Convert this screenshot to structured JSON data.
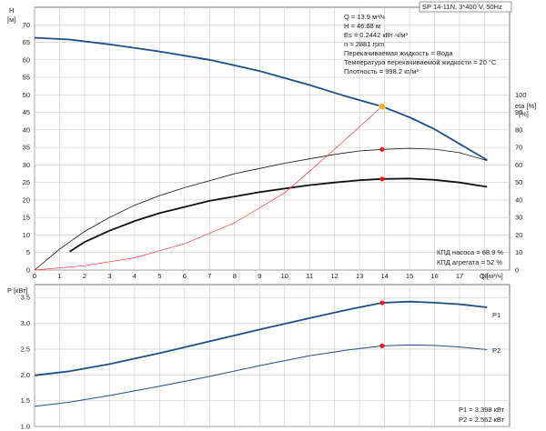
{
  "header": {
    "model": "SP 14-11N, 3*400 V, 50Hz"
  },
  "info": {
    "lines": [
      "Q = 13.9 м³/ч",
      "H = 46.68 м",
      "Es = 0.2442 кВт·ч/м³",
      "n = 2881 rpm",
      "Перекачиваемая жидкость = Вода",
      "Температура перекачиваемой жидкости = 20 °C",
      "Плотность = 998.2 кг/м³"
    ]
  },
  "efficiency_labels": {
    "pump": "КПД насоса = 68.9 %",
    "unit": "КПД агрегата = 52 %"
  },
  "power_labels": {
    "p1": "P1 = 3.398 кВт",
    "p2": "P2 = 2.562 кВт"
  },
  "colors": {
    "head": "#1f4e8c",
    "efficiency": "#111111",
    "npsh_red": "#ff3b3b",
    "power": "#1f4e8c",
    "point": "#e02020",
    "duty_point": "#ffb020"
  },
  "chart_data": [
    {
      "type": "line",
      "title": "",
      "xlabel": "Q [м³/ч]",
      "ylabel": "H [м]",
      "y2label": "eta [%]",
      "xlim": [
        0,
        19
      ],
      "ylim": [
        0,
        75
      ],
      "y2lim": [
        0,
        150
      ],
      "x_ticks": [
        0,
        1,
        2,
        3,
        4,
        5,
        6,
        7,
        8,
        9,
        10,
        11,
        12,
        13,
        14,
        15,
        16,
        17,
        18
      ],
      "y_ticks": [
        0,
        5,
        10,
        15,
        20,
        25,
        30,
        35,
        40,
        45,
        50,
        55,
        60,
        65,
        70
      ],
      "y2_ticks": [
        0,
        10,
        20,
        30,
        40,
        50,
        60,
        70,
        80,
        90,
        100
      ],
      "grid": true,
      "series": [
        {
          "name": "",
          "axis": "left",
          "style": "head",
          "x": [
            0,
            1.4,
            3,
            5,
            7,
            9,
            11,
            12.5,
            13.9,
            15,
            16,
            17,
            18.1
          ],
          "y": [
            66.3,
            65.8,
            64.4,
            62.4,
            60.0,
            56.8,
            52.8,
            49.5,
            46.68,
            43.6,
            40.2,
            36.0,
            31.4
          ]
        },
        {
          "name": "",
          "axis": "right",
          "style": "eta-pump",
          "x": [
            0,
            1,
            2,
            3,
            4,
            5,
            6,
            7,
            8,
            9,
            10,
            11,
            12,
            13,
            13.9,
            15,
            16,
            17,
            18.1
          ],
          "y": [
            0,
            12,
            22,
            30,
            37,
            42.5,
            47,
            51,
            55,
            58,
            61,
            63.5,
            66,
            68,
            68.9,
            69.5,
            69,
            67,
            62.5
          ]
        },
        {
          "name": "",
          "axis": "right",
          "style": "eta-unit",
          "x": [
            1.4,
            2,
            3,
            4,
            5,
            6,
            7,
            8,
            9,
            10,
            11,
            12,
            13,
            13.9,
            15,
            16,
            17,
            18.1
          ],
          "y": [
            10.5,
            16,
            22.5,
            28,
            32.5,
            36,
            39.5,
            42,
            44.5,
            46.5,
            48.5,
            50,
            51.3,
            52,
            52.2,
            51.5,
            50,
            47.5
          ]
        },
        {
          "name": "",
          "axis": "right",
          "style": "red",
          "x": [
            0,
            2,
            4,
            6,
            8,
            10,
            12,
            13.9
          ],
          "y": [
            0,
            2.5,
            7,
            15,
            27,
            44,
            69,
            93.4
          ]
        }
      ],
      "points": [
        {
          "x": 13.9,
          "y": 46.68,
          "axis": "left",
          "kind": "duty"
        },
        {
          "x": 13.9,
          "y": 68.9,
          "axis": "right",
          "kind": "red"
        },
        {
          "x": 13.9,
          "y": 52,
          "axis": "right",
          "kind": "red"
        }
      ]
    },
    {
      "type": "line",
      "title": "",
      "xlabel": "",
      "ylabel": "P [кВт]",
      "xlim": [
        0,
        19
      ],
      "ylim": [
        1.0,
        3.75
      ],
      "y_ticks": [
        1.0,
        1.5,
        2.0,
        2.5,
        3.0,
        3.5
      ],
      "grid": true,
      "series": [
        {
          "name": "P1",
          "style": "thick",
          "x": [
            0,
            1.4,
            3,
            5,
            7,
            9,
            11,
            12.5,
            13.9,
            15,
            16,
            17,
            18.1
          ],
          "y": [
            1.99,
            2.07,
            2.21,
            2.42,
            2.65,
            2.88,
            3.1,
            3.26,
            3.398,
            3.42,
            3.4,
            3.37,
            3.31
          ]
        },
        {
          "name": "P2",
          "style": "thin",
          "x": [
            0,
            1.4,
            3,
            5,
            7,
            9,
            11,
            12.5,
            13.9,
            15,
            16,
            17,
            18.1
          ],
          "y": [
            1.39,
            1.47,
            1.6,
            1.78,
            1.97,
            2.18,
            2.37,
            2.48,
            2.562,
            2.58,
            2.57,
            2.54,
            2.49
          ]
        }
      ],
      "points": [
        {
          "x": 13.9,
          "y": 3.398,
          "kind": "red"
        },
        {
          "x": 13.9,
          "y": 2.562,
          "kind": "red"
        }
      ],
      "tick_labels": [
        "1.0",
        "1.5",
        "2.0",
        "2.5",
        "3.0",
        "3.5"
      ]
    }
  ]
}
